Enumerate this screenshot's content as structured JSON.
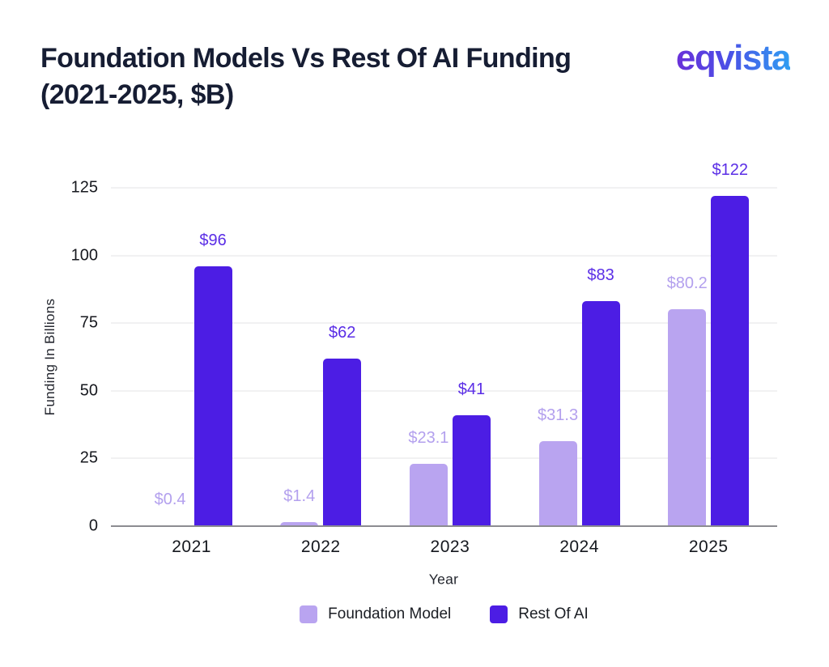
{
  "header": {
    "title_line1": "Foundation Models Vs Rest Of AI Funding",
    "title_line2": "(2021-2025, $B)",
    "logo_text": "eqvista"
  },
  "chart_data": {
    "type": "bar",
    "title": "Foundation Models Vs Rest Of AI Funding (2021-2025, $B)",
    "categories": [
      "2021",
      "2022",
      "2023",
      "2024",
      "2025"
    ],
    "series": [
      {
        "name": "Foundation Model",
        "color": "#B9A4F0",
        "label_color": "#B3A0EE",
        "values": [
          0.4,
          1.4,
          23.1,
          31.3,
          80.2
        ],
        "labels": [
          "$0.4",
          "$1.4",
          "$23.1",
          "$31.3",
          "$80.2"
        ]
      },
      {
        "name": "Rest Of AI",
        "color": "#4C1DE4",
        "label_color": "#5A2DE6",
        "values": [
          96,
          62,
          41,
          83,
          122
        ],
        "labels": [
          "$96",
          "$62",
          "$41",
          "$83",
          "$122"
        ]
      }
    ],
    "xlabel": "Year",
    "ylabel": "Funding In Billions",
    "ylim": [
      0,
      125
    ],
    "yticks": [
      0,
      25,
      50,
      75,
      100,
      125
    ],
    "grid": true,
    "legend_position": "bottom"
  },
  "legend": {
    "items": [
      {
        "label": "Foundation Model",
        "color": "#B9A4F0"
      },
      {
        "label": "Rest Of AI",
        "color": "#4C1DE4"
      }
    ]
  }
}
